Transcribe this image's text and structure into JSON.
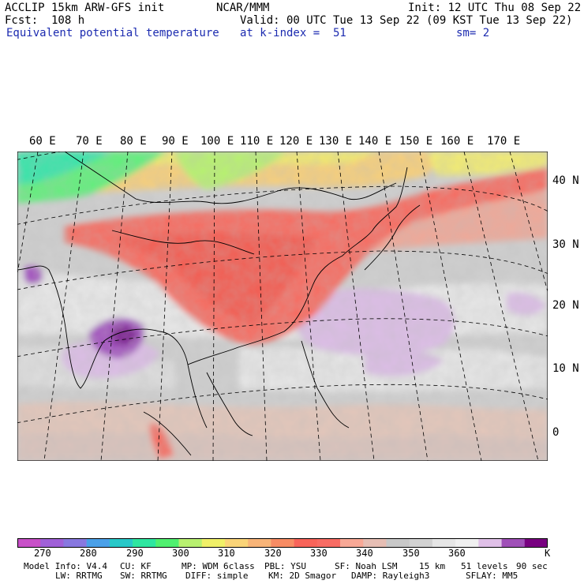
{
  "header": {
    "model": "ACCLIP 15km ARW-GFS init",
    "forecast": "Fcst:  108 h",
    "field": "Equivalent potential temperature",
    "org": "NCAR/MMM",
    "valid": "Valid: 00 UTC Tue 13 Sep 22 (09 KST Tue 13 Sep 22)",
    "level": "at k-index =  51",
    "init": "Init: 12 UTC Thu 08 Sep 22",
    "smooth": "sm= 2"
  },
  "axes": {
    "lon_labels": [
      "60 E",
      "70 E",
      "80 E",
      "90 E",
      "100 E",
      "110 E",
      "120 E",
      "130 E",
      "140 E",
      "150 E",
      "160 E",
      "170 E"
    ],
    "lat_labels": [
      "40 N",
      "30 N",
      "20 N",
      "10 N",
      "0"
    ]
  },
  "colorbar": {
    "labels": [
      "270",
      "280",
      "290",
      "300",
      "310",
      "320",
      "330",
      "340",
      "350",
      "360"
    ],
    "unit": "K",
    "colors": [
      "#c850c8",
      "#a060d8",
      "#8878e0",
      "#4aa0e8",
      "#28c8c8",
      "#2ee6a0",
      "#50f070",
      "#b8f070",
      "#f0f068",
      "#fad478",
      "#f8b478",
      "#f88c64",
      "#f8645a",
      "#f86c64",
      "#f8a896",
      "#e6beb4",
      "#c8c8c8",
      "#d2d2d2",
      "#e6e6e6",
      "#f0f0f0",
      "#e0c0e8",
      "#a050b8",
      "#780080"
    ]
  },
  "footer": {
    "model_info": "Model Info: V4.4",
    "cu": "CU: KF",
    "mp": "MP: WDM 6class",
    "pbl": "PBL: YSU",
    "sf": "SF: Noah LSM",
    "res": "15 km",
    "levels": "51 levels",
    "dt": "90 sec",
    "lw": "LW: RRTMG",
    "sw": "SW: RRTMG",
    "diff": "DIFF: simple",
    "km": "KM: 2D Smagor",
    "damp": "DAMP: Rayleigh3",
    "sflay": "SFLAY: MM5"
  }
}
